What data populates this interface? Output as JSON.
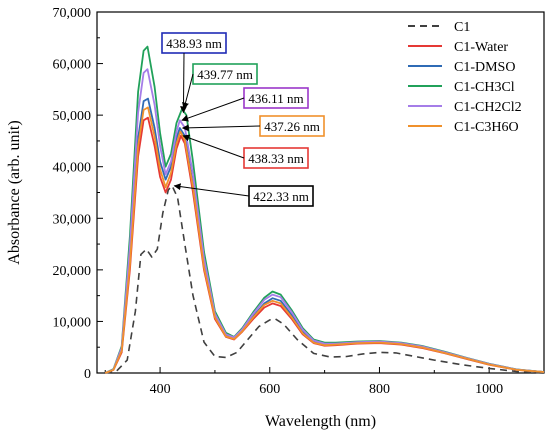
{
  "chart_data": {
    "type": "line",
    "xlabel": "Wavelength (nm)",
    "ylabel": "Absorbance (arb. unit)",
    "xlim": [
      285,
      1100
    ],
    "ylim": [
      0,
      70000
    ],
    "x_ticks": [
      400,
      600,
      800,
      1000
    ],
    "y_ticks": [
      0,
      10000,
      20000,
      30000,
      40000,
      50000,
      60000,
      70000
    ],
    "x_tick_labels": [
      "400",
      "600",
      "800",
      "1000"
    ],
    "y_tick_labels": [
      "0",
      "10,000",
      "20,000",
      "30,000",
      "40,000",
      "50,000",
      "60,000",
      "70,000"
    ],
    "grid": false,
    "legend_position": "top-right",
    "series": [
      {
        "name": "C1",
        "color": "#404040",
        "dash": "dashed",
        "points": [
          [
            300,
            0
          ],
          [
            320,
            300
          ],
          [
            340,
            2500
          ],
          [
            355,
            12000
          ],
          [
            365,
            23000
          ],
          [
            375,
            24000
          ],
          [
            385,
            22500
          ],
          [
            395,
            24000
          ],
          [
            405,
            31000
          ],
          [
            415,
            35500
          ],
          [
            422,
            36300
          ],
          [
            432,
            34000
          ],
          [
            445,
            25000
          ],
          [
            460,
            15000
          ],
          [
            480,
            6000
          ],
          [
            500,
            3200
          ],
          [
            520,
            3000
          ],
          [
            540,
            4000
          ],
          [
            560,
            6500
          ],
          [
            580,
            9000
          ],
          [
            600,
            10300
          ],
          [
            610,
            10500
          ],
          [
            625,
            9500
          ],
          [
            650,
            6500
          ],
          [
            680,
            3800
          ],
          [
            710,
            3100
          ],
          [
            740,
            3200
          ],
          [
            770,
            3700
          ],
          [
            800,
            4000
          ],
          [
            830,
            3900
          ],
          [
            860,
            3300
          ],
          [
            900,
            2500
          ],
          [
            950,
            1600
          ],
          [
            1000,
            900
          ],
          [
            1050,
            300
          ],
          [
            1100,
            0
          ]
        ]
      },
      {
        "name": "C1-Water",
        "color": "#e53935",
        "dash": "solid",
        "points": [
          [
            300,
            0
          ],
          [
            315,
            600
          ],
          [
            330,
            4000
          ],
          [
            345,
            20000
          ],
          [
            360,
            42000
          ],
          [
            370,
            49000
          ],
          [
            378,
            49500
          ],
          [
            390,
            44000
          ],
          [
            400,
            38000
          ],
          [
            410,
            35000
          ],
          [
            420,
            37500
          ],
          [
            430,
            43500
          ],
          [
            438,
            46000
          ],
          [
            445,
            44500
          ],
          [
            460,
            35000
          ],
          [
            480,
            20000
          ],
          [
            500,
            10500
          ],
          [
            520,
            7000
          ],
          [
            535,
            6500
          ],
          [
            550,
            8000
          ],
          [
            570,
            10500
          ],
          [
            590,
            12700
          ],
          [
            605,
            13500
          ],
          [
            620,
            13000
          ],
          [
            640,
            10500
          ],
          [
            660,
            7500
          ],
          [
            680,
            5800
          ],
          [
            700,
            5300
          ],
          [
            720,
            5400
          ],
          [
            760,
            5700
          ],
          [
            800,
            5800
          ],
          [
            840,
            5500
          ],
          [
            880,
            4800
          ],
          [
            920,
            3800
          ],
          [
            960,
            2700
          ],
          [
            1000,
            1600
          ],
          [
            1050,
            600
          ],
          [
            1100,
            200
          ]
        ]
      },
      {
        "name": "C1-DMSO",
        "color": "#2f6bb5",
        "dash": "solid",
        "points": [
          [
            300,
            0
          ],
          [
            315,
            650
          ],
          [
            330,
            4400
          ],
          [
            345,
            22000
          ],
          [
            360,
            45500
          ],
          [
            370,
            52700
          ],
          [
            378,
            53200
          ],
          [
            390,
            47500
          ],
          [
            400,
            41000
          ],
          [
            410,
            37500
          ],
          [
            420,
            40000
          ],
          [
            430,
            45500
          ],
          [
            436,
            47500
          ],
          [
            445,
            46000
          ],
          [
            460,
            36500
          ],
          [
            480,
            21000
          ],
          [
            500,
            11000
          ],
          [
            520,
            7300
          ],
          [
            535,
            6800
          ],
          [
            550,
            8300
          ],
          [
            570,
            11000
          ],
          [
            590,
            13500
          ],
          [
            605,
            14500
          ],
          [
            620,
            14000
          ],
          [
            640,
            11200
          ],
          [
            660,
            8000
          ],
          [
            680,
            6100
          ],
          [
            700,
            5500
          ],
          [
            720,
            5600
          ],
          [
            760,
            5900
          ],
          [
            800,
            6000
          ],
          [
            840,
            5700
          ],
          [
            880,
            5000
          ],
          [
            920,
            3900
          ],
          [
            960,
            2800
          ],
          [
            1000,
            1700
          ],
          [
            1050,
            650
          ],
          [
            1100,
            200
          ]
        ]
      },
      {
        "name": "C1-CH3Cl",
        "color": "#21a15a",
        "dash": "solid",
        "points": [
          [
            300,
            0
          ],
          [
            315,
            750
          ],
          [
            330,
            5200
          ],
          [
            345,
            26500
          ],
          [
            360,
            54500
          ],
          [
            370,
            62500
          ],
          [
            377,
            63300
          ],
          [
            390,
            55500
          ],
          [
            400,
            46500
          ],
          [
            410,
            40000
          ],
          [
            420,
            42500
          ],
          [
            430,
            48500
          ],
          [
            440,
            51200
          ],
          [
            448,
            50000
          ],
          [
            460,
            41000
          ],
          [
            480,
            23500
          ],
          [
            500,
            12000
          ],
          [
            520,
            7800
          ],
          [
            535,
            7000
          ],
          [
            550,
            8700
          ],
          [
            570,
            11800
          ],
          [
            590,
            14600
          ],
          [
            605,
            15800
          ],
          [
            620,
            15200
          ],
          [
            640,
            12200
          ],
          [
            660,
            8700
          ],
          [
            680,
            6500
          ],
          [
            700,
            5900
          ],
          [
            720,
            5900
          ],
          [
            760,
            6100
          ],
          [
            800,
            6200
          ],
          [
            840,
            5900
          ],
          [
            880,
            5200
          ],
          [
            920,
            4100
          ],
          [
            960,
            2900
          ],
          [
            1000,
            1800
          ],
          [
            1050,
            700
          ],
          [
            1100,
            200
          ]
        ]
      },
      {
        "name": "C1-CH2Cl2",
        "color": "#a57de8",
        "dash": "solid",
        "points": [
          [
            300,
            0
          ],
          [
            315,
            700
          ],
          [
            330,
            4900
          ],
          [
            345,
            24500
          ],
          [
            360,
            50500
          ],
          [
            370,
            58200
          ],
          [
            377,
            58900
          ],
          [
            390,
            52000
          ],
          [
            400,
            44000
          ],
          [
            410,
            38500
          ],
          [
            420,
            41000
          ],
          [
            430,
            46800
          ],
          [
            436,
            49000
          ],
          [
            445,
            47600
          ],
          [
            460,
            38500
          ],
          [
            480,
            22300
          ],
          [
            500,
            11500
          ],
          [
            520,
            7500
          ],
          [
            535,
            6900
          ],
          [
            550,
            8500
          ],
          [
            570,
            11500
          ],
          [
            590,
            14200
          ],
          [
            605,
            15200
          ],
          [
            620,
            14700
          ],
          [
            640,
            11800
          ],
          [
            660,
            8400
          ],
          [
            680,
            6300
          ],
          [
            700,
            5700
          ],
          [
            720,
            5700
          ],
          [
            760,
            6000
          ],
          [
            800,
            6100
          ],
          [
            840,
            5800
          ],
          [
            880,
            5100
          ],
          [
            920,
            4000
          ],
          [
            960,
            2850
          ],
          [
            1000,
            1750
          ],
          [
            1050,
            680
          ],
          [
            1100,
            200
          ]
        ]
      },
      {
        "name": "C1-C3H6O",
        "color": "#f0912c",
        "dash": "solid",
        "points": [
          [
            300,
            0
          ],
          [
            315,
            620
          ],
          [
            330,
            4300
          ],
          [
            345,
            21000
          ],
          [
            360,
            44000
          ],
          [
            370,
            51000
          ],
          [
            378,
            51500
          ],
          [
            390,
            45800
          ],
          [
            400,
            39500
          ],
          [
            410,
            36000
          ],
          [
            420,
            38800
          ],
          [
            430,
            44500
          ],
          [
            437,
            46800
          ],
          [
            445,
            45200
          ],
          [
            460,
            36000
          ],
          [
            480,
            20500
          ],
          [
            500,
            10800
          ],
          [
            520,
            7100
          ],
          [
            535,
            6600
          ],
          [
            550,
            8100
          ],
          [
            570,
            10800
          ],
          [
            590,
            13200
          ],
          [
            605,
            14000
          ],
          [
            620,
            13500
          ],
          [
            640,
            10800
          ],
          [
            660,
            7700
          ],
          [
            680,
            5900
          ],
          [
            700,
            5400
          ],
          [
            720,
            5500
          ],
          [
            760,
            5800
          ],
          [
            800,
            5900
          ],
          [
            840,
            5600
          ],
          [
            880,
            4900
          ],
          [
            920,
            3850
          ],
          [
            960,
            2750
          ],
          [
            1000,
            1650
          ],
          [
            1050,
            620
          ],
          [
            1100,
            200
          ]
        ]
      }
    ],
    "annotations": [
      {
        "label": "438.93 nm",
        "box_color": "#1f2bb5",
        "target": [
          438.93,
          50500
        ]
      },
      {
        "label": "439.77 nm",
        "box_color": "#21a15a",
        "target": [
          439.77,
          51200
        ]
      },
      {
        "label": "436.11 nm",
        "box_color": "#9b37c9",
        "target": [
          436.11,
          49000
        ]
      },
      {
        "label": "437.26 nm",
        "box_color": "#f0912c",
        "target": [
          437.26,
          47500
        ]
      },
      {
        "label": "438.33 nm",
        "box_color": "#e53935",
        "target": [
          438.33,
          46000
        ]
      },
      {
        "label": "422.33 nm",
        "box_color": "#000000",
        "target": [
          422.33,
          36300
        ]
      }
    ]
  }
}
